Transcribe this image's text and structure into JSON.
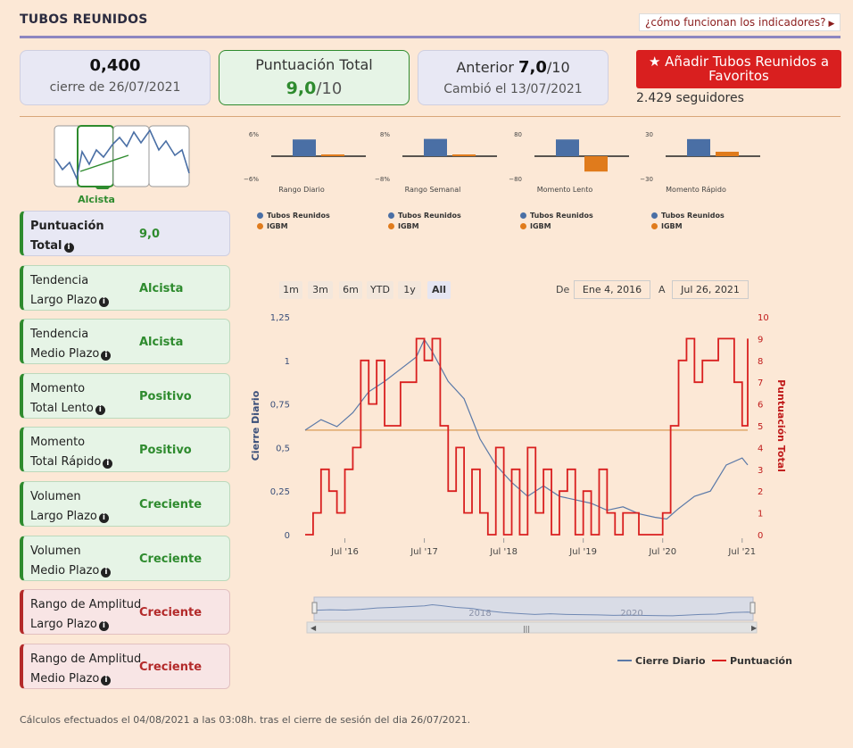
{
  "header": {
    "title": "TUBOS REUNIDOS",
    "help_link": "¿cómo funcionan los indicadores?"
  },
  "kpis": {
    "close_value": "0,400",
    "close_label": "cierre de 26/07/2021",
    "score_label": "Puntuación Total",
    "score_value": "9,0",
    "score_suffix": "/10",
    "prev_label": "Anterior ",
    "prev_value": "7,0",
    "prev_suffix": "/10",
    "changed_label": "Cambió el 13/07/2021"
  },
  "favorite": {
    "button_label": "Añadir Tubos Reunidos a Favoritos",
    "followers": "2.429 seguidores"
  },
  "trend": {
    "label": "Alcista"
  },
  "indicators": [
    {
      "name_line1": "Puntuación",
      "name_line2": "Total",
      "value": "9,0",
      "style": "blue"
    },
    {
      "name_line1": "Tendencia",
      "name_line2": "Largo Plazo",
      "value": "Alcista",
      "style": "green"
    },
    {
      "name_line1": "Tendencia",
      "name_line2": "Medio Plazo",
      "value": "Alcista",
      "style": "green"
    },
    {
      "name_line1": "Momento",
      "name_line2": "Total Lento",
      "value": "Positivo",
      "style": "green"
    },
    {
      "name_line1": "Momento",
      "name_line2": "Total Rápido",
      "value": "Positivo",
      "style": "green"
    },
    {
      "name_line1": "Volumen",
      "name_line2": "Largo Plazo",
      "value": "Creciente",
      "style": "green"
    },
    {
      "name_line1": "Volumen",
      "name_line2": "Medio Plazo",
      "value": "Creciente",
      "style": "green"
    },
    {
      "name_line1": "Rango de Amplitud",
      "name_line2": "Largo Plazo",
      "value": "Creciente",
      "style": "red"
    },
    {
      "name_line1": "Rango de Amplitud",
      "name_line2": "Medio Plazo",
      "value": "Creciente",
      "style": "red"
    }
  ],
  "range_buttons": [
    "1m",
    "3m",
    "6m",
    "YTD",
    "1y",
    "All"
  ],
  "date_range": {
    "from_label": "De",
    "from": "Ene 4, 2016",
    "to_label": "A",
    "to": "Jul 26, 2021"
  },
  "footer": "Cálculos efectuados el 04/08/2021 a las 03:08h. tras el cierre de sesión del dia 26/07/2021.",
  "colors": {
    "blue": "#4a6fa5",
    "orange": "#e07b1c",
    "red": "#d91f1f",
    "green": "#2e8b2e"
  },
  "chart_data": [
    {
      "type": "bar",
      "title": "Rango Diario",
      "categories": [
        "Tubos Reunidos",
        "IGBM"
      ],
      "values": [
        4.5,
        0.4
      ],
      "ylim": [
        -6,
        6
      ],
      "tick_top": "6%",
      "tick_bottom": "−6%"
    },
    {
      "type": "bar",
      "title": "Rango Semanal",
      "categories": [
        "Tubos Reunidos",
        "IGBM"
      ],
      "values": [
        6.2,
        0.6
      ],
      "ylim": [
        -8,
        8
      ],
      "tick_top": "8%",
      "tick_bottom": "−8%"
    },
    {
      "type": "bar",
      "title": "Momento Lento",
      "categories": [
        "Tubos Reunidos",
        "IGBM"
      ],
      "values": [
        60,
        -55
      ],
      "ylim": [
        -80,
        80
      ],
      "tick_top": "80",
      "tick_bottom": "−80"
    },
    {
      "type": "bar",
      "title": "Momento Rápido",
      "categories": [
        "Tubos Reunidos",
        "IGBM"
      ],
      "values": [
        23,
        6
      ],
      "ylim": [
        -30,
        30
      ],
      "tick_top": "30",
      "tick_bottom": "−30"
    },
    {
      "type": "line",
      "title": "",
      "ylabel": "Cierre Diario",
      "y2label": "Puntuación Total",
      "ylim": [
        0,
        1.25
      ],
      "y2lim": [
        0,
        10
      ],
      "y_ticks": [
        "0",
        "0,25",
        "0,5",
        "0,75",
        "1",
        "1,25"
      ],
      "y2_ticks": [
        "0",
        "1",
        "2",
        "3",
        "4",
        "5",
        "6",
        "7",
        "8",
        "9",
        "10"
      ],
      "x_ticks": [
        "Jul '16",
        "Jul '17",
        "Jul '18",
        "Jul '19",
        "Jul '20",
        "Jul '21"
      ],
      "navigator_labels": [
        "2018",
        "2020"
      ],
      "series": [
        {
          "name": "Cierre Diario",
          "x": [
            2016.0,
            2016.2,
            2016.4,
            2016.6,
            2016.8,
            2017.0,
            2017.2,
            2017.4,
            2017.5,
            2017.6,
            2017.8,
            2018.0,
            2018.2,
            2018.4,
            2018.6,
            2018.8,
            2019.0,
            2019.2,
            2019.4,
            2019.6,
            2019.8,
            2020.0,
            2020.2,
            2020.4,
            2020.55,
            2020.7,
            2020.9,
            2021.1,
            2021.3,
            2021.5,
            2021.57
          ],
          "values": [
            0.6,
            0.66,
            0.62,
            0.7,
            0.82,
            0.88,
            0.95,
            1.02,
            1.12,
            1.05,
            0.88,
            0.78,
            0.55,
            0.4,
            0.3,
            0.22,
            0.28,
            0.22,
            0.2,
            0.18,
            0.14,
            0.16,
            0.12,
            0.1,
            0.09,
            0.15,
            0.22,
            0.25,
            0.4,
            0.44,
            0.4
          ]
        },
        {
          "name": "Puntuación",
          "x": [
            2016.0,
            2016.1,
            2016.2,
            2016.3,
            2016.4,
            2016.5,
            2016.6,
            2016.7,
            2016.8,
            2016.9,
            2017.0,
            2017.2,
            2017.4,
            2017.5,
            2017.6,
            2017.7,
            2017.8,
            2017.9,
            2018.0,
            2018.1,
            2018.2,
            2018.3,
            2018.4,
            2018.5,
            2018.6,
            2018.7,
            2018.8,
            2018.9,
            2019.0,
            2019.1,
            2019.2,
            2019.3,
            2019.4,
            2019.5,
            2019.6,
            2019.7,
            2019.8,
            2019.9,
            2020.0,
            2020.2,
            2020.4,
            2020.5,
            2020.6,
            2020.7,
            2020.8,
            2020.9,
            2021.0,
            2021.2,
            2021.4,
            2021.5,
            2021.57
          ],
          "values": [
            0,
            1,
            3,
            2,
            1,
            3,
            4,
            8,
            6,
            8,
            5,
            7,
            9,
            8,
            9,
            5,
            2,
            4,
            1,
            3,
            1,
            0,
            4,
            0,
            3,
            0,
            4,
            1,
            3,
            0,
            2,
            3,
            0,
            2,
            0,
            3,
            1,
            0,
            1,
            0,
            0,
            1,
            5,
            8,
            9,
            7,
            8,
            9,
            7,
            5,
            9
          ]
        }
      ],
      "reference_line": 4.8
    }
  ],
  "legend": {
    "close_daily": "Cierre Diario",
    "score": "Puntuación"
  },
  "mini_legend": {
    "a": "Tubos Reunidos",
    "b": "IGBM"
  }
}
